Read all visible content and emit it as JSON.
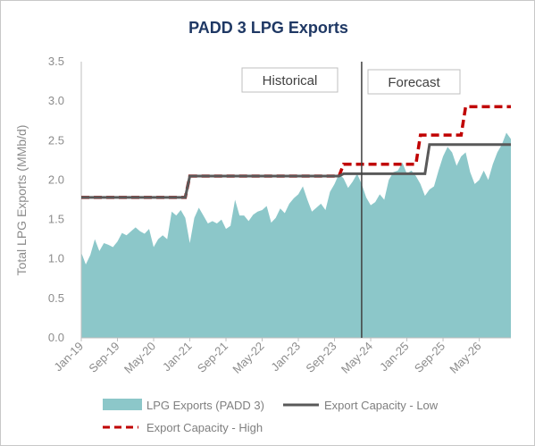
{
  "chart_data": {
    "type": "area",
    "title": "PADD 3 LPG Exports",
    "ylabel": "Total LPG Exports (MMb/d)",
    "xlabel": "",
    "ylim": [
      0,
      3.5
    ],
    "y_ticks": [
      "0.0",
      "0.5",
      "1.0",
      "1.5",
      "2.0",
      "2.5",
      "3.0",
      "3.5"
    ],
    "x_ticks": [
      "Jan-19",
      "Sep-19",
      "May-20",
      "Jan-21",
      "Sep-21",
      "May-22",
      "Jan-23",
      "Sep-23",
      "May-24",
      "Jan-25",
      "Sep-25",
      "May-26"
    ],
    "annotations": {
      "historical": "Historical",
      "forecast": "Forecast",
      "divider_date": "2024-03"
    },
    "grid": false,
    "legend_placement": "bottom",
    "colors": {
      "area": "#8cc7c9",
      "low": "#595959",
      "high": "#c00000",
      "title": "#1f3864"
    },
    "series": [
      {
        "name": "LPG Exports (PADD 3)",
        "kind": "area",
        "x": [
          "2019-01",
          "2019-02",
          "2019-03",
          "2019-04",
          "2019-05",
          "2019-06",
          "2019-07",
          "2019-08",
          "2019-09",
          "2019-10",
          "2019-11",
          "2019-12",
          "2020-01",
          "2020-02",
          "2020-03",
          "2020-04",
          "2020-05",
          "2020-06",
          "2020-07",
          "2020-08",
          "2020-09",
          "2020-10",
          "2020-11",
          "2020-12",
          "2021-01",
          "2021-02",
          "2021-03",
          "2021-04",
          "2021-05",
          "2021-06",
          "2021-07",
          "2021-08",
          "2021-09",
          "2021-10",
          "2021-11",
          "2021-12",
          "2022-01",
          "2022-02",
          "2022-03",
          "2022-04",
          "2022-05",
          "2022-06",
          "2022-07",
          "2022-08",
          "2022-09",
          "2022-10",
          "2022-11",
          "2022-12",
          "2023-01",
          "2023-02",
          "2023-03",
          "2023-04",
          "2023-05",
          "2023-06",
          "2023-07",
          "2023-08",
          "2023-09",
          "2023-10",
          "2023-11",
          "2023-12",
          "2024-01",
          "2024-02",
          "2024-03",
          "2024-04",
          "2024-05",
          "2024-06",
          "2024-07",
          "2024-08",
          "2024-09",
          "2024-10",
          "2024-11",
          "2024-12",
          "2025-01",
          "2025-02",
          "2025-03",
          "2025-04",
          "2025-05",
          "2025-06",
          "2025-07",
          "2025-08",
          "2025-09",
          "2025-10",
          "2025-11",
          "2025-12",
          "2026-01",
          "2026-02",
          "2026-03",
          "2026-04",
          "2026-05",
          "2026-06",
          "2026-07",
          "2026-08",
          "2026-09",
          "2026-10",
          "2026-11",
          "2026-12"
        ],
        "y": [
          1.08,
          0.93,
          1.05,
          1.25,
          1.1,
          1.2,
          1.18,
          1.15,
          1.22,
          1.33,
          1.3,
          1.35,
          1.4,
          1.35,
          1.32,
          1.38,
          1.15,
          1.25,
          1.3,
          1.25,
          1.6,
          1.55,
          1.62,
          1.52,
          1.2,
          1.52,
          1.65,
          1.55,
          1.45,
          1.48,
          1.45,
          1.5,
          1.38,
          1.42,
          1.75,
          1.55,
          1.55,
          1.48,
          1.56,
          1.6,
          1.62,
          1.67,
          1.46,
          1.52,
          1.64,
          1.58,
          1.7,
          1.77,
          1.82,
          1.92,
          1.75,
          1.6,
          1.65,
          1.7,
          1.62,
          1.85,
          1.95,
          2.08,
          2.02,
          1.9,
          1.98,
          2.08,
          1.95,
          1.78,
          1.68,
          1.72,
          1.82,
          1.75,
          2.0,
          2.1,
          2.12,
          2.22,
          2.08,
          2.12,
          2.05,
          1.95,
          1.8,
          1.88,
          1.92,
          2.12,
          2.3,
          2.42,
          2.35,
          2.18,
          2.3,
          2.35,
          2.1,
          1.95,
          2.0,
          2.12,
          2.0,
          2.2,
          2.35,
          2.45,
          2.6,
          2.52
        ]
      },
      {
        "name": "Export Capacity - Low",
        "kind": "step",
        "x": [
          "2019-01",
          "2020-12",
          "2021-01",
          "2023-10",
          "2023-11",
          "2025-05",
          "2025-06",
          "2026-12"
        ],
        "y": [
          1.78,
          1.78,
          2.05,
          2.05,
          2.08,
          2.08,
          2.45,
          2.45
        ]
      },
      {
        "name": "Export Capacity - High",
        "kind": "step-dashed",
        "x": [
          "2019-01",
          "2020-12",
          "2021-01",
          "2023-10",
          "2023-11",
          "2025-03",
          "2025-04",
          "2026-01",
          "2026-02",
          "2026-12"
        ],
        "y": [
          1.78,
          1.78,
          2.05,
          2.05,
          2.2,
          2.2,
          2.57,
          2.57,
          2.93,
          2.93
        ]
      }
    ]
  }
}
